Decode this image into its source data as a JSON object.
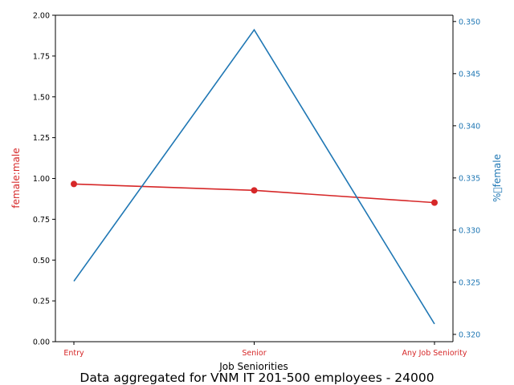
{
  "chart_data": {
    "type": "line",
    "title": "Data aggregated for VNM IT 201-500 employees - 24000",
    "xlabel": "Job Seniorities",
    "categories": [
      "Entry",
      "Senior",
      "Any Job Seniority"
    ],
    "left_axis": {
      "label": "female:male",
      "color": "#d62728",
      "ylim": [
        0,
        2
      ],
      "ticks": [
        "0.00",
        "0.25",
        "0.50",
        "0.75",
        "1.00",
        "1.25",
        "1.50",
        "1.75",
        "2.00"
      ]
    },
    "right_axis": {
      "label": "%\u0000female",
      "color": "#1f77b4",
      "ylim": [
        0.3193,
        0.3506
      ],
      "ticks": [
        "0.320",
        "0.325",
        "0.330",
        "0.335",
        "0.340",
        "0.345",
        "0.350"
      ]
    },
    "series": [
      {
        "axis": "left",
        "color": "#d62728",
        "marker": "circle",
        "values": [
          0.966,
          0.927,
          0.852
        ]
      },
      {
        "axis": "right",
        "color": "#1f77b4",
        "marker": "none",
        "values": [
          0.3251,
          0.3492,
          0.321
        ]
      }
    ],
    "grid": false
  }
}
